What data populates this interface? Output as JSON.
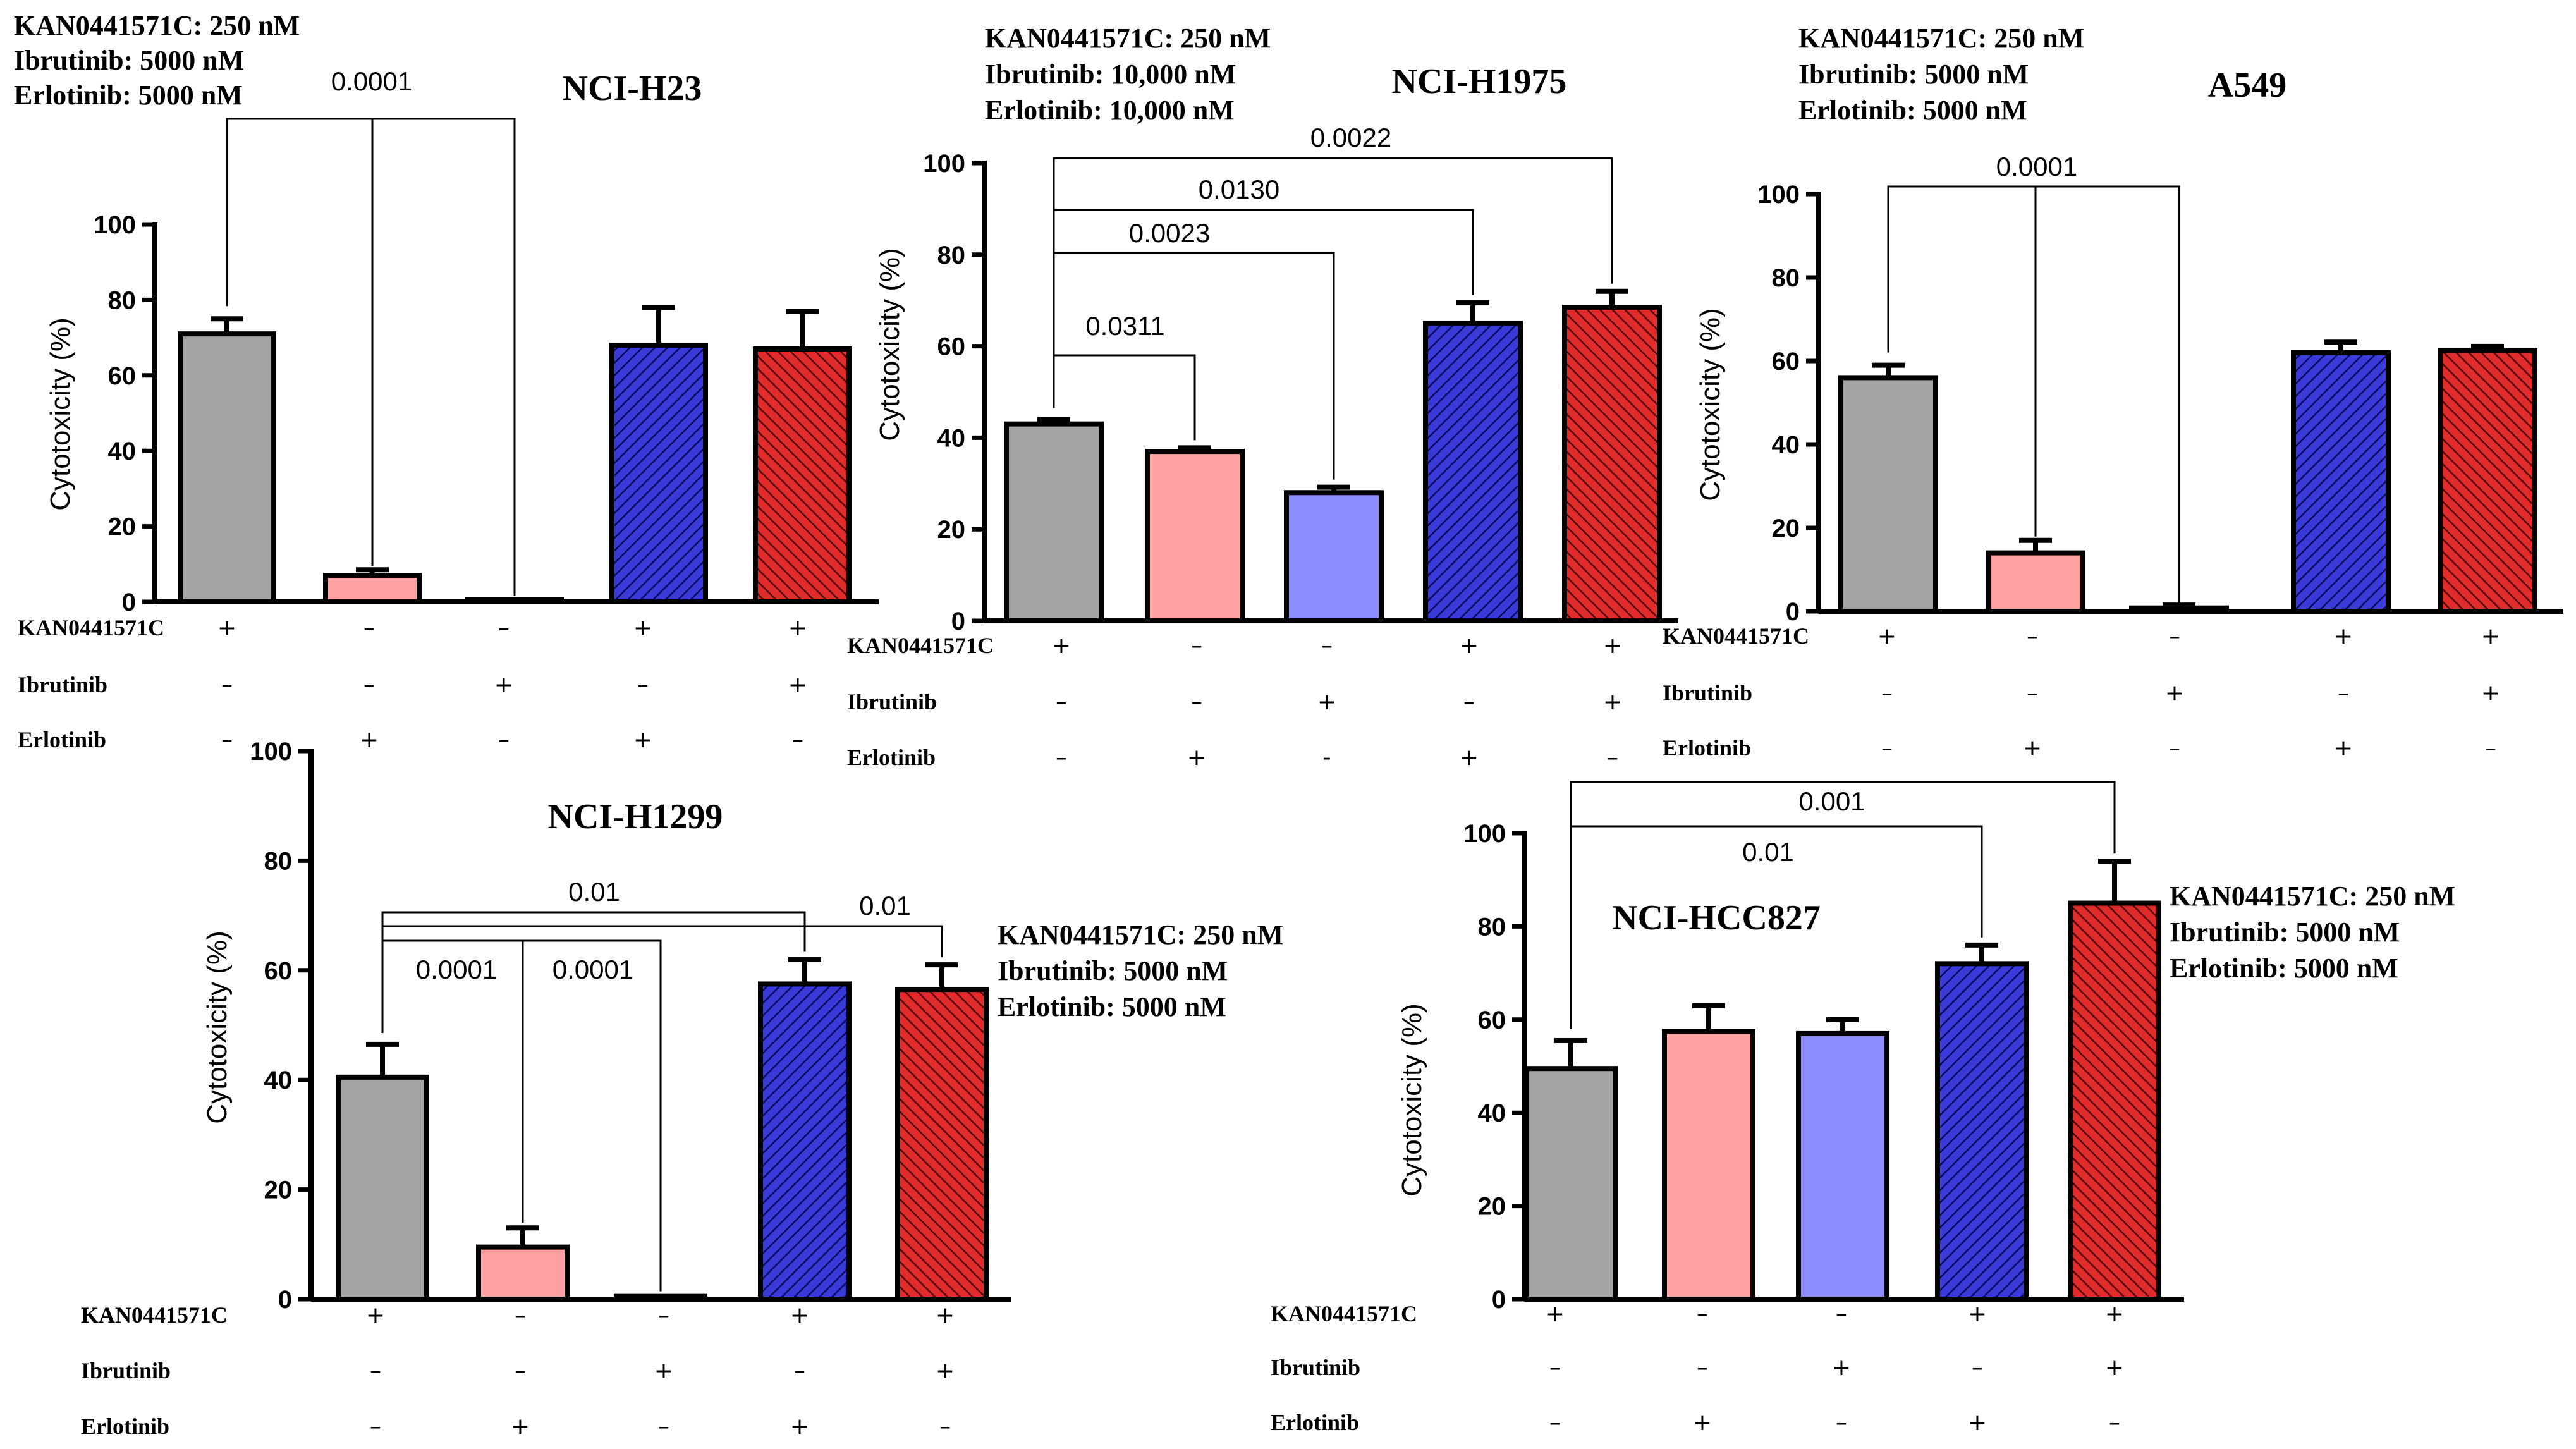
{
  "colors": {
    "KAN only": "#a3a3a5",
    "Ibrutinib only": "#8c8cff",
    "Erlotinib only": "#ffa1a1",
    "KAN + Erlotinib": "#3a3ad8",
    "KAN + Ibrutinib": "#e12c2c",
    "KAN + Erlotinib hatch": "#0a0a60",
    "KAN + Ibrutinib hatch": "#550000"
  },
  "chart_data": [
    {
      "type": "bar",
      "title": "NCI-H23",
      "ylabel": "Cytotoxicity (%)",
      "ylim": [
        0,
        100
      ],
      "yticks": [
        "0",
        "20",
        "40",
        "60",
        "80",
        "100"
      ],
      "conditions": [
        "KAN0441571C: 250 nM",
        "Ibrutinib: 5000 nM",
        "Erlotinib: 5000 nM"
      ],
      "categories": [
        "KAN only",
        "Erlotinib only",
        "Ibrutinib only",
        "KAN + Erlotinib",
        "KAN + Ibrutinib"
      ],
      "values": [
        71,
        7,
        0.5,
        68,
        67
      ],
      "errors": [
        4,
        1.5,
        0,
        10,
        10
      ],
      "treatment_rows": [
        {
          "label": "KAN0441571C",
          "signs": [
            "+",
            "–",
            "–",
            "+",
            "+"
          ]
        },
        {
          "label": "Ibrutinib",
          "signs": [
            "–",
            "–",
            "+",
            "–",
            "+"
          ]
        },
        {
          "label": "Erlotinib",
          "signs": [
            "–",
            "+",
            "–",
            "+",
            "–"
          ]
        }
      ],
      "comparisons": [
        {
          "from": 0,
          "to": [
            1,
            2
          ],
          "label": "0.0001"
        }
      ]
    },
    {
      "type": "bar",
      "title": "NCI-H1975",
      "ylabel": "Cytotoxicity (%)",
      "ylim": [
        0,
        100
      ],
      "yticks": [
        "0",
        "20",
        "40",
        "60",
        "80",
        "100"
      ],
      "conditions": [
        "KAN0441571C: 250 nM",
        "Ibrutinib: 10,000 nM",
        "Erlotinib: 10,000 nM"
      ],
      "categories": [
        "KAN only",
        "Erlotinib only",
        "Ibrutinib only",
        "KAN + Erlotinib",
        "KAN + Ibrutinib"
      ],
      "values": [
        43,
        37,
        28,
        65,
        68.5
      ],
      "errors": [
        1,
        0.8,
        1.2,
        4.5,
        3.5
      ],
      "treatment_rows": [
        {
          "label": "KAN0441571C",
          "signs": [
            "+",
            "–",
            "–",
            "+",
            "+"
          ]
        },
        {
          "label": "Ibrutinib",
          "signs": [
            "–",
            "–",
            "+",
            "–",
            "+"
          ]
        },
        {
          "label": "Erlotinib",
          "signs": [
            "–",
            "+",
            "-",
            "+",
            "–"
          ]
        }
      ],
      "comparisons": [
        {
          "from": 0,
          "to": [
            1
          ],
          "label": "0.0311"
        },
        {
          "from": 0,
          "to": [
            2
          ],
          "label": "0.0023"
        },
        {
          "from": 0,
          "to": [
            3
          ],
          "label": "0.0130"
        },
        {
          "from": 0,
          "to": [
            4
          ],
          "label": "0.0022"
        }
      ]
    },
    {
      "type": "bar",
      "title": "A549",
      "ylabel": "Cytotoxicity (%)",
      "ylim": [
        0,
        100
      ],
      "yticks": [
        "0",
        "20",
        "40",
        "60",
        "80",
        "100"
      ],
      "conditions": [
        "KAN0441571C: 250 nM",
        "Ibrutinib: 5000 nM",
        "Erlotinib: 5000 nM"
      ],
      "categories": [
        "KAN only",
        "Erlotinib only",
        "Ibrutinib only",
        "KAN + Erlotinib",
        "KAN + Ibrutinib"
      ],
      "values": [
        56,
        14,
        0.8,
        62,
        62.5
      ],
      "errors": [
        3,
        3,
        0.7,
        2.5,
        1
      ],
      "treatment_rows": [
        {
          "label": "KAN0441571C",
          "signs": [
            "+",
            "–",
            "–",
            "+",
            "+"
          ]
        },
        {
          "label": "Ibrutinib",
          "signs": [
            "–",
            "–",
            "+",
            "–",
            "+"
          ]
        },
        {
          "label": "Erlotinib",
          "signs": [
            "–",
            "+",
            "–",
            "+",
            "–"
          ]
        }
      ],
      "comparisons": [
        {
          "from": 0,
          "to": [
            1,
            2
          ],
          "label": "0.0001"
        }
      ]
    },
    {
      "type": "bar",
      "title": "NCI-H1299",
      "ylabel": "Cytotoxicity (%)",
      "ylim": [
        0,
        100
      ],
      "yticks": [
        "0",
        "20",
        "40",
        "60",
        "80",
        "100"
      ],
      "conditions": [
        "KAN0441571C: 250 nM",
        "Ibrutinib: 5000 nM",
        "Erlotinib: 5000 nM"
      ],
      "categories": [
        "KAN only",
        "Erlotinib only",
        "Ibrutinib only",
        "KAN + Erlotinib",
        "KAN + Ibrutinib"
      ],
      "values": [
        40.5,
        9.5,
        0.5,
        57.5,
        56.5
      ],
      "errors": [
        6,
        3.5,
        0,
        4.5,
        4.5
      ],
      "treatment_rows": [
        {
          "label": "KAN0441571C",
          "signs": [
            "+",
            "–",
            "–",
            "+",
            "+"
          ]
        },
        {
          "label": "Ibrutinib",
          "signs": [
            "–",
            "–",
            "+",
            "–",
            "+"
          ]
        },
        {
          "label": "Erlotinib",
          "signs": [
            "–",
            "+",
            "–",
            "+",
            "–"
          ]
        }
      ],
      "comparisons": [
        {
          "from": 0,
          "to": [
            1
          ],
          "label": "0.0001"
        },
        {
          "from": 0,
          "to": [
            2
          ],
          "label": "0.0001"
        },
        {
          "from": 0,
          "to": [
            3
          ],
          "label": "0.01"
        },
        {
          "from": 0,
          "to": [
            4
          ],
          "label": "0.01"
        }
      ]
    },
    {
      "type": "bar",
      "title": "NCI-HCC827",
      "ylabel": "Cytotoxicity (%)",
      "ylim": [
        0,
        100
      ],
      "yticks": [
        "0",
        "20",
        "40",
        "60",
        "80",
        "100"
      ],
      "conditions": [
        "KAN0441571C: 250 nM",
        "Ibrutinib: 5000 nM",
        "Erlotinib: 5000 nM"
      ],
      "categories": [
        "KAN only",
        "Erlotinib only",
        "Ibrutinib only",
        "KAN + Erlotinib",
        "KAN + Ibrutinib"
      ],
      "values": [
        49.5,
        57.5,
        57,
        72,
        85
      ],
      "errors": [
        6,
        5.5,
        3,
        4,
        9
      ],
      "treatment_rows": [
        {
          "label": "KAN0441571C",
          "signs": [
            "+",
            "–",
            "–",
            "+",
            "+"
          ]
        },
        {
          "label": "Ibrutinib",
          "signs": [
            "–",
            "–",
            "+",
            "–",
            "+"
          ]
        },
        {
          "label": "Erlotinib",
          "signs": [
            "–",
            "+",
            "–",
            "+",
            "–"
          ]
        }
      ],
      "comparisons": [
        {
          "from": 0,
          "to": [
            3
          ],
          "label": "0.01"
        },
        {
          "from": 0,
          "to": [
            4
          ],
          "label": "0.001"
        }
      ]
    }
  ]
}
